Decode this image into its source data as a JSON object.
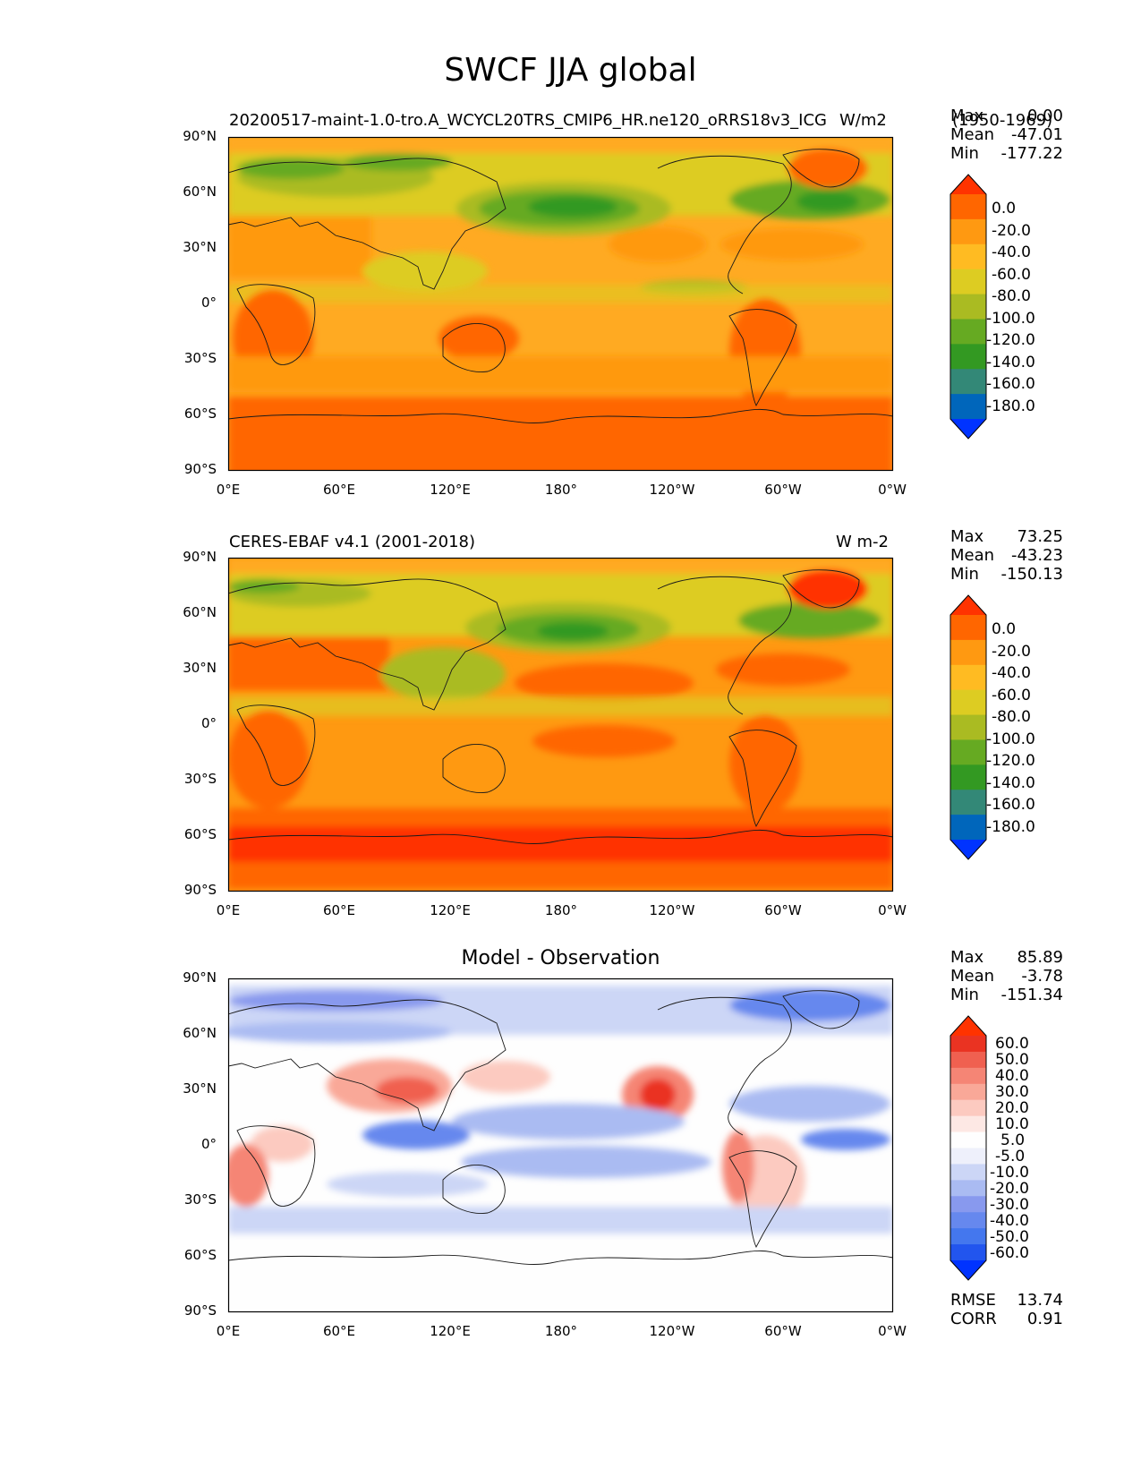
{
  "figure": {
    "title": "SWCF JJA global"
  },
  "colors": {
    "abs_bins": [
      "#0033ff",
      "#0066bb",
      "#338877",
      "#339922",
      "#66aa22",
      "#aabb22",
      "#ddcc22",
      "#ffbb22",
      "#ff9911",
      "#ff6600",
      "#ff3300"
    ],
    "diff_bins": [
      "#0033ff",
      "#2255ee",
      "#4477ee",
      "#6688ee",
      "#8899ee",
      "#aabbf2",
      "#ccd6f6",
      "#eef0fb",
      "#fefefe",
      "#fde8e4",
      "#fccac0",
      "#f9a898",
      "#f58575",
      "#f06050",
      "#ea3322",
      "#ff3300"
    ]
  },
  "panels": [
    {
      "id": "model",
      "title_left": "20200517-maint-1.0-tro.A_WCYCL20TRS_CMIP6_HR.ne120_oRRS18v3_ICG",
      "title_right": "W/m2",
      "title_period": "(1950-1969)",
      "stats": {
        "max_label": "Max",
        "max": "0.00",
        "mean_label": "Mean",
        "mean": "-47.01",
        "min_label": "Min",
        "min": "-177.22"
      },
      "colorbar": [
        "0.0",
        "-20.0",
        "-40.0",
        "-60.0",
        "-80.0",
        "-100.0",
        "-120.0",
        "-140.0",
        "-160.0",
        "-180.0"
      ]
    },
    {
      "id": "obs",
      "title_left": "CERES-EBAF v4.1 (2001-2018)",
      "title_right": "W m-2",
      "stats": {
        "max_label": "Max",
        "max": "73.25",
        "mean_label": "Mean",
        "mean": "-43.23",
        "min_label": "Min",
        "min": "-150.13"
      },
      "colorbar": [
        "0.0",
        "-20.0",
        "-40.0",
        "-60.0",
        "-80.0",
        "-100.0",
        "-120.0",
        "-140.0",
        "-160.0",
        "-180.0"
      ]
    },
    {
      "id": "diff",
      "title_center": "Model - Observation",
      "stats": {
        "max_label": "Max",
        "max": "85.89",
        "mean_label": "Mean",
        "mean": "-3.78",
        "min_label": "Min",
        "min": "-151.34"
      },
      "colorbar": [
        "60.0",
        "50.0",
        "40.0",
        "30.0",
        "20.0",
        "10.0",
        "5.0",
        "-5.0",
        "-10.0",
        "-20.0",
        "-30.0",
        "-40.0",
        "-50.0",
        "-60.0"
      ],
      "rmse_label": "RMSE",
      "rmse": "13.74",
      "corr_label": "CORR",
      "corr": "0.91"
    }
  ],
  "axes": {
    "lat_ticks": [
      "90°N",
      "60°N",
      "30°N",
      "0°",
      "30°S",
      "60°S",
      "90°S"
    ],
    "lon_ticks": [
      "0°E",
      "60°E",
      "120°E",
      "180°",
      "120°W",
      "60°W",
      "0°W"
    ]
  }
}
